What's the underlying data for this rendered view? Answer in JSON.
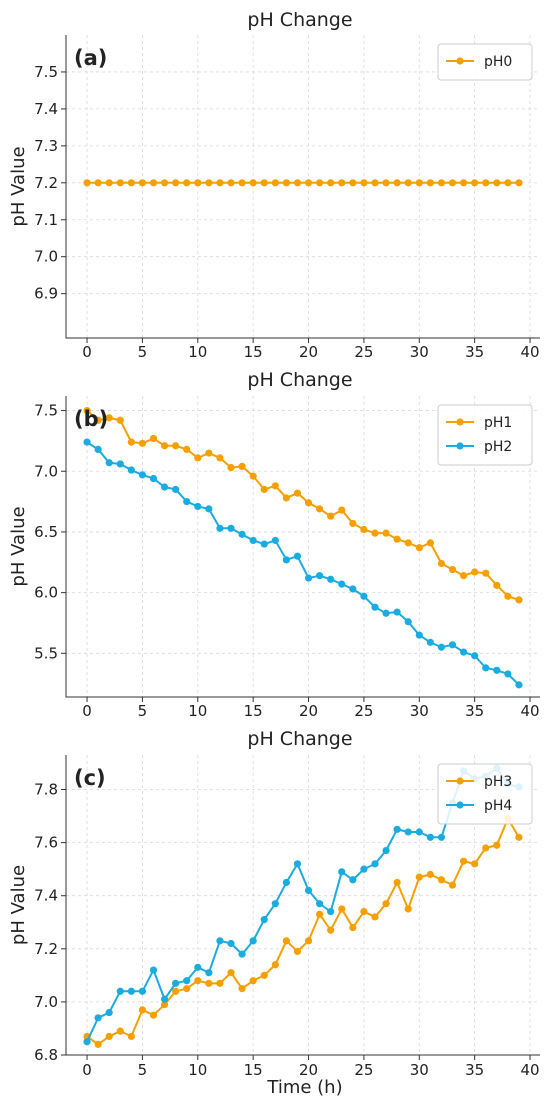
{
  "chart_data": [
    {
      "type": "line",
      "panel_label": "(a)",
      "title": "pH Change",
      "xlabel": "",
      "ylabel": "pH Value",
      "xlim": [
        -1.9,
        40.9
      ],
      "ylim": [
        6.78,
        7.6
      ],
      "xticks": [
        0,
        5,
        10,
        15,
        20,
        25,
        30,
        35,
        40
      ],
      "yticks": [
        6.9,
        7.0,
        7.1,
        7.2,
        7.3,
        7.4,
        7.5
      ],
      "ytick_labels": [
        "6.9",
        "7.0",
        "7.1",
        "7.2",
        "7.3",
        "7.4",
        "7.5"
      ],
      "grid": true,
      "legend_position": "upper right",
      "x": [
        0,
        1,
        2,
        3,
        4,
        5,
        6,
        7,
        8,
        9,
        10,
        11,
        12,
        13,
        14,
        15,
        16,
        17,
        18,
        19,
        20,
        21,
        22,
        23,
        24,
        25,
        26,
        27,
        28,
        29,
        30,
        31,
        32,
        33,
        34,
        35,
        36,
        37,
        38,
        39
      ],
      "series": [
        {
          "name": "pH0",
          "color": "#f5a000",
          "values": [
            7.2,
            7.2,
            7.2,
            7.2,
            7.2,
            7.2,
            7.2,
            7.2,
            7.2,
            7.2,
            7.2,
            7.2,
            7.2,
            7.2,
            7.2,
            7.2,
            7.2,
            7.2,
            7.2,
            7.2,
            7.2,
            7.2,
            7.2,
            7.2,
            7.2,
            7.2,
            7.2,
            7.2,
            7.2,
            7.2,
            7.2,
            7.2,
            7.2,
            7.2,
            7.2,
            7.2,
            7.2,
            7.2,
            7.2,
            7.2
          ]
        }
      ]
    },
    {
      "type": "line",
      "panel_label": "(b)",
      "title": "pH Change",
      "xlabel": "",
      "ylabel": "pH Value",
      "xlim": [
        -1.9,
        40.9
      ],
      "ylim": [
        5.14,
        7.62
      ],
      "xticks": [
        0,
        5,
        10,
        15,
        20,
        25,
        30,
        35,
        40
      ],
      "yticks": [
        5.5,
        6.0,
        6.5,
        7.0,
        7.5
      ],
      "ytick_labels": [
        "5.5",
        "6.0",
        "6.5",
        "7.0",
        "7.5"
      ],
      "grid": true,
      "legend_position": "upper right",
      "x": [
        0,
        1,
        2,
        3,
        4,
        5,
        6,
        7,
        8,
        9,
        10,
        11,
        12,
        13,
        14,
        15,
        16,
        17,
        18,
        19,
        20,
        21,
        22,
        23,
        24,
        25,
        26,
        27,
        28,
        29,
        30,
        31,
        32,
        33,
        34,
        35,
        36,
        37,
        38,
        39
      ],
      "series": [
        {
          "name": "pH1",
          "color": "#f5a000",
          "values": [
            7.5,
            7.42,
            7.44,
            7.42,
            7.24,
            7.23,
            7.27,
            7.21,
            7.21,
            7.18,
            7.11,
            7.15,
            7.11,
            7.03,
            7.04,
            6.96,
            6.85,
            6.88,
            6.78,
            6.82,
            6.74,
            6.69,
            6.63,
            6.68,
            6.57,
            6.52,
            6.49,
            6.49,
            6.44,
            6.41,
            6.37,
            6.41,
            6.24,
            6.19,
            6.14,
            6.17,
            6.16,
            6.06,
            5.97,
            5.94
          ]
        },
        {
          "name": "pH2",
          "color": "#1aace0",
          "values": [
            7.24,
            7.18,
            7.07,
            7.06,
            7.01,
            6.97,
            6.94,
            6.87,
            6.85,
            6.75,
            6.71,
            6.69,
            6.53,
            6.53,
            6.48,
            6.43,
            6.4,
            6.43,
            6.27,
            6.3,
            6.12,
            6.14,
            6.11,
            6.07,
            6.03,
            5.97,
            5.88,
            5.83,
            5.84,
            5.76,
            5.65,
            5.59,
            5.55,
            5.57,
            5.51,
            5.48,
            5.38,
            5.36,
            5.33,
            5.24
          ]
        }
      ]
    },
    {
      "type": "line",
      "panel_label": "(c)",
      "title": "pH Change",
      "xlabel": "Time (h)",
      "ylabel": "pH Value",
      "xlim": [
        -1.9,
        40.9
      ],
      "ylim": [
        6.8,
        7.93
      ],
      "xticks": [
        0,
        5,
        10,
        15,
        20,
        25,
        30,
        35,
        40
      ],
      "yticks": [
        6.8,
        7.0,
        7.2,
        7.4,
        7.6,
        7.8
      ],
      "ytick_labels": [
        "6.8",
        "7.0",
        "7.2",
        "7.4",
        "7.6",
        "7.8"
      ],
      "grid": true,
      "legend_position": "upper right",
      "x": [
        0,
        1,
        2,
        3,
        4,
        5,
        6,
        7,
        8,
        9,
        10,
        11,
        12,
        13,
        14,
        15,
        16,
        17,
        18,
        19,
        20,
        21,
        22,
        23,
        24,
        25,
        26,
        27,
        28,
        29,
        30,
        31,
        32,
        33,
        34,
        35,
        36,
        37,
        38,
        39
      ],
      "series": [
        {
          "name": "pH3",
          "color": "#f5a000",
          "values": [
            6.87,
            6.84,
            6.87,
            6.89,
            6.87,
            6.97,
            6.95,
            6.99,
            7.04,
            7.05,
            7.08,
            7.07,
            7.07,
            7.11,
            7.05,
            7.08,
            7.1,
            7.14,
            7.23,
            7.19,
            7.23,
            7.33,
            7.27,
            7.35,
            7.28,
            7.34,
            7.32,
            7.37,
            7.45,
            7.35,
            7.47,
            7.48,
            7.46,
            7.44,
            7.53,
            7.52,
            7.58,
            7.59,
            7.69,
            7.62
          ]
        },
        {
          "name": "pH4",
          "color": "#1aace0",
          "values": [
            6.85,
            6.94,
            6.96,
            7.04,
            7.04,
            7.04,
            7.12,
            7.01,
            7.07,
            7.08,
            7.13,
            7.11,
            7.23,
            7.22,
            7.18,
            7.23,
            7.31,
            7.37,
            7.45,
            7.52,
            7.42,
            7.37,
            7.34,
            7.49,
            7.46,
            7.5,
            7.52,
            7.57,
            7.65,
            7.64,
            7.64,
            7.62,
            7.62,
            7.75,
            7.87,
            7.84,
            7.85,
            7.88,
            7.82,
            7.81
          ]
        }
      ]
    }
  ]
}
